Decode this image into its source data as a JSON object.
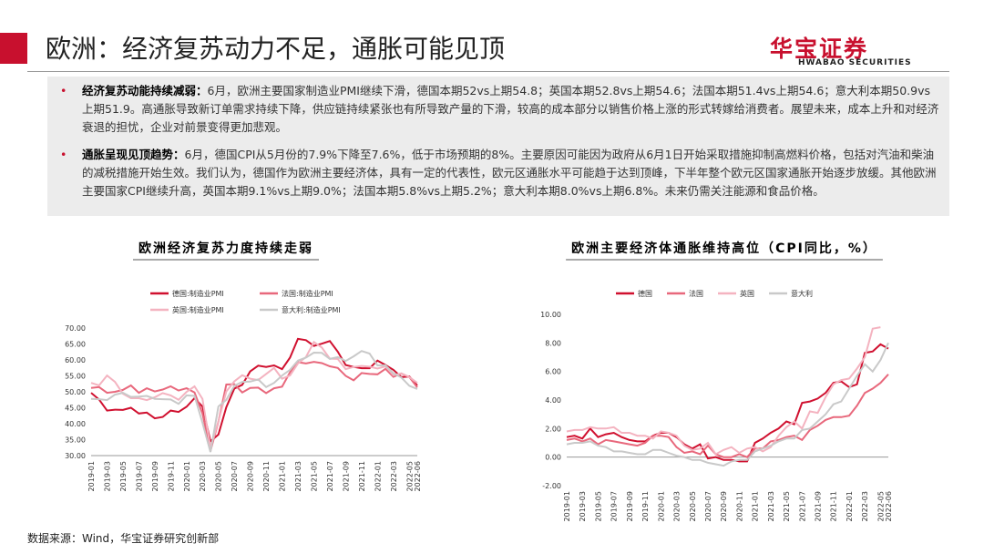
{
  "header": {
    "title": "欧洲：经济复苏动力不足，通胀可能见顶",
    "logo": "华宝证券",
    "logo_sub": "HWABAO SECURITIES"
  },
  "bullets": [
    {
      "lead": "经济复苏动能持续减弱：",
      "text": "6月，欧洲主要国家制造业PMI继续下滑，德国本期52vs上期54.8；英国本期52.8vs上期54.6；法国本期51.4vs上期54.6；意大利本期50.9vs上期51.9。高通胀导致新订单需求持续下降，供应链持续紧张也有所导致产量的下滑，较高的成本部分以销售价格上涨的形式转嫁给消费者。展望未来，成本上升和对经济衰退的担忧，企业对前景变得更加悲观。"
    },
    {
      "lead": "通胀呈现见顶趋势：",
      "text": "6月，德国CPI从5月份的7.9%下降至7.6%，低于市场预期的8%。主要原因可能因为政府从6月1日开始采取措施抑制高燃料价格，包括对汽油和柴油的减税措施开始生效。我们认为，德国作为欧洲主要经济体，具有一定的代表性，欧元区通胀水平可能趋于达到顶峰，下半年整个欧元区国家通胀开始逐步放缓。其他欧洲主要国家CPI继续升高，英国本期9.1%vs上期9.0%；法国本期5.8%vs上期5.2%；意大利本期8.0%vs上期6.8%。未来仍需关注能源和食品价格。"
    }
  ],
  "chart_data": [
    {
      "type": "line",
      "title": "欧洲经济复苏力度持续走弱",
      "categories": [
        "2019-01",
        null,
        "2019-03",
        null,
        "2019-05",
        null,
        "2019-07",
        null,
        "2019-09",
        null,
        "2019-11",
        null,
        "2020-01",
        null,
        "2020-03",
        null,
        "2020-05",
        null,
        "2020-07",
        null,
        "2020-09",
        null,
        "2020-11",
        null,
        "2021-01",
        null,
        "2021-03",
        null,
        "2021-05",
        null,
        "2021-07",
        null,
        "2021-09",
        null,
        "2021-11",
        null,
        "2022-01",
        null,
        "2022-03",
        null,
        "2022-05",
        "2022-06"
      ],
      "ylim": [
        30,
        70
      ],
      "yticks": [
        {
          "value": 30,
          "label": "30.00"
        },
        {
          "value": 35,
          "label": "35.00"
        },
        {
          "value": 40,
          "label": "40.00"
        },
        {
          "value": 45,
          "label": "45.00"
        },
        {
          "value": 50,
          "label": "50.00"
        },
        {
          "value": 55,
          "label": "55.00"
        },
        {
          "value": 60,
          "label": "60.00"
        },
        {
          "value": 65,
          "label": "65.00"
        },
        {
          "value": 70,
          "label": "70.00"
        }
      ],
      "series": [
        {
          "name": "德国:制造业PMI",
          "color": "#d0102f",
          "values": [
            49.7,
            47.6,
            44.1,
            44.4,
            44.3,
            45.0,
            43.2,
            43.5,
            41.7,
            42.1,
            44.1,
            43.7,
            45.3,
            48.0,
            45.4,
            34.5,
            36.6,
            45.2,
            51.0,
            52.2,
            56.4,
            58.2,
            57.8,
            58.3,
            57.1,
            60.7,
            66.6,
            66.2,
            64.4,
            65.1,
            65.9,
            62.6,
            58.4,
            57.8,
            57.4,
            57.4,
            59.8,
            58.4,
            56.9,
            54.6,
            54.8,
            52.0
          ]
        },
        {
          "name": "法国:制造业PMI",
          "color": "#e8687c",
          "values": [
            51.2,
            51.5,
            49.7,
            50.0,
            50.6,
            52.0,
            49.7,
            51.1,
            50.1,
            50.7,
            51.7,
            50.4,
            51.1,
            49.8,
            43.2,
            31.5,
            40.6,
            52.3,
            52.4,
            49.8,
            51.2,
            51.3,
            49.6,
            51.1,
            51.6,
            56.1,
            59.3,
            58.9,
            59.4,
            59.0,
            58.0,
            57.5,
            55.0,
            53.6,
            55.9,
            55.6,
            55.5,
            57.2,
            54.7,
            55.7,
            54.6,
            51.4
          ]
        },
        {
          "name": "英国:制造业PMI",
          "color": "#f4b3c0",
          "values": [
            52.8,
            52.0,
            55.1,
            53.1,
            49.4,
            48.0,
            48.0,
            47.4,
            48.3,
            49.6,
            48.9,
            47.5,
            50.0,
            51.7,
            47.8,
            32.6,
            40.7,
            50.1,
            53.3,
            55.2,
            54.1,
            53.7,
            55.6,
            57.5,
            54.1,
            55.1,
            58.9,
            60.9,
            65.6,
            63.9,
            60.4,
            60.3,
            57.1,
            57.8,
            58.1,
            57.9,
            57.3,
            58.0,
            55.2,
            55.8,
            54.6,
            52.8
          ]
        },
        {
          "name": "意大利:制造业PMI",
          "color": "#c9c9c9",
          "values": [
            47.8,
            47.7,
            47.4,
            49.1,
            49.7,
            48.4,
            48.5,
            48.7,
            47.8,
            47.7,
            47.6,
            46.2,
            48.9,
            48.7,
            40.3,
            31.1,
            45.4,
            47.5,
            51.9,
            53.1,
            53.2,
            53.9,
            51.5,
            52.8,
            55.1,
            56.9,
            59.8,
            60.7,
            62.3,
            62.2,
            60.3,
            60.9,
            59.7,
            61.1,
            62.8,
            62.0,
            58.3,
            58.3,
            55.8,
            54.5,
            51.9,
            50.9
          ]
        }
      ]
    },
    {
      "type": "line",
      "title": "欧洲主要经济体通胀维持高位（CPI同比，%）",
      "categories": [
        "2019-01",
        null,
        "2019-03",
        null,
        "2019-05",
        null,
        "2019-07",
        null,
        "2019-09",
        null,
        "2019-11",
        null,
        "2020-01",
        null,
        "2020-03",
        null,
        "2020-05",
        null,
        "2020-07",
        null,
        "2020-09",
        null,
        "2020-11",
        null,
        "2021-01",
        null,
        "2021-03",
        null,
        "2021-05",
        null,
        "2021-07",
        null,
        "2021-09",
        null,
        "2021-11",
        null,
        "2022-01",
        null,
        "2022-03",
        null,
        "2022-05",
        "2022-06"
      ],
      "ylim": [
        -2,
        10
      ],
      "yticks": [
        {
          "value": -2,
          "label": "-2.00"
        },
        {
          "value": 0,
          "label": "0.00"
        },
        {
          "value": 2,
          "label": "2.00"
        },
        {
          "value": 4,
          "label": "4.00"
        },
        {
          "value": 6,
          "label": "6.00"
        },
        {
          "value": 8,
          "label": "8.00"
        },
        {
          "value": 10,
          "label": "10.00"
        }
      ],
      "series": [
        {
          "name": "德国",
          "color": "#d0102f",
          "values": [
            1.4,
            1.5,
            1.3,
            2.0,
            1.4,
            1.6,
            1.7,
            1.4,
            1.2,
            1.1,
            1.1,
            1.5,
            1.7,
            1.7,
            1.4,
            0.9,
            0.6,
            0.9,
            -0.1,
            0.0,
            -0.2,
            -0.2,
            -0.3,
            -0.3,
            1.0,
            1.3,
            1.7,
            2.0,
            2.5,
            2.3,
            3.8,
            3.9,
            4.1,
            4.5,
            5.2,
            5.3,
            4.9,
            5.1,
            7.3,
            7.4,
            7.9,
            7.6
          ]
        },
        {
          "name": "法国",
          "color": "#e8687c",
          "values": [
            1.2,
            1.3,
            1.1,
            1.3,
            0.9,
            1.2,
            1.1,
            1.0,
            0.9,
            0.8,
            1.0,
            1.5,
            1.5,
            1.4,
            0.7,
            0.3,
            0.4,
            0.2,
            0.8,
            0.2,
            0.0,
            0.0,
            0.2,
            0.0,
            0.6,
            0.6,
            1.1,
            1.2,
            1.4,
            1.5,
            1.2,
            1.9,
            2.2,
            2.6,
            2.8,
            2.8,
            2.9,
            3.6,
            4.5,
            4.8,
            5.2,
            5.8
          ]
        },
        {
          "name": "英国",
          "color": "#f4b3c0",
          "values": [
            1.8,
            1.9,
            1.9,
            2.1,
            2.0,
            2.0,
            2.1,
            1.7,
            1.7,
            1.5,
            1.5,
            1.3,
            1.8,
            1.7,
            1.5,
            0.8,
            0.5,
            0.6,
            1.0,
            0.2,
            0.5,
            0.7,
            0.3,
            0.6,
            0.7,
            0.4,
            0.7,
            1.5,
            2.1,
            2.5,
            2.0,
            3.2,
            3.1,
            4.2,
            5.1,
            5.4,
            5.5,
            6.2,
            7.0,
            9.0,
            9.1,
            null
          ]
        },
        {
          "name": "意大利",
          "color": "#c9c9c9",
          "values": [
            0.9,
            1.0,
            1.0,
            1.1,
            0.8,
            0.7,
            0.4,
            0.4,
            0.3,
            0.2,
            0.2,
            0.5,
            0.5,
            0.3,
            0.1,
            0.0,
            -0.2,
            -0.2,
            -0.4,
            -0.5,
            -0.6,
            -0.3,
            -0.2,
            -0.2,
            0.4,
            0.6,
            0.8,
            1.1,
            1.3,
            1.3,
            1.9,
            2.0,
            2.5,
            3.0,
            3.7,
            3.9,
            4.8,
            5.7,
            6.5,
            6.0,
            6.8,
            8.0
          ]
        }
      ]
    }
  ],
  "footer": {
    "source": "数据来源：Wind，华宝证券研究创新部"
  }
}
